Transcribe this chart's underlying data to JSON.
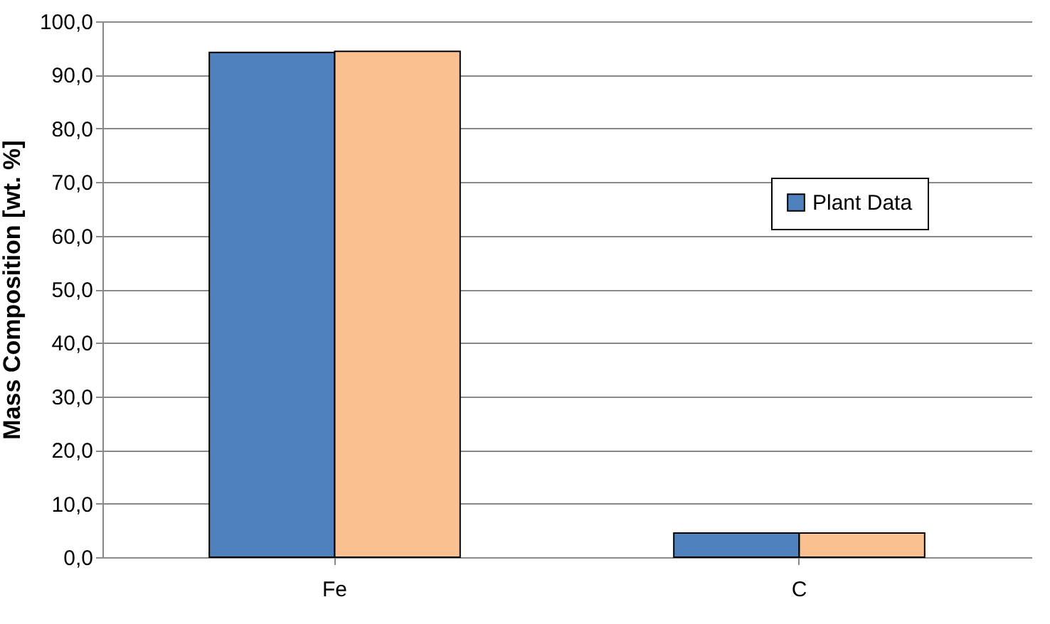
{
  "chart_data": {
    "type": "bar",
    "ylabel": "Mass Composition [wt. %]",
    "categories": [
      "Fe",
      "C"
    ],
    "series": [
      {
        "name": "Plant Data",
        "color": "#4f81bd",
        "values": [
          94.2,
          4.5
        ]
      },
      {
        "color": "#fac090",
        "values": [
          94.4,
          4.5
        ]
      }
    ],
    "ylim": [
      0,
      100
    ],
    "yticks": [
      {
        "value": 0,
        "label": "0,0"
      },
      {
        "value": 10,
        "label": "10,0"
      },
      {
        "value": 20,
        "label": "20,0"
      },
      {
        "value": 30,
        "label": "30,0"
      },
      {
        "value": 40,
        "label": "40,0"
      },
      {
        "value": 50,
        "label": "50,0"
      },
      {
        "value": 60,
        "label": "60,0"
      },
      {
        "value": 70,
        "label": "70,0"
      },
      {
        "value": 80,
        "label": "80,0"
      },
      {
        "value": 90,
        "label": "90,0"
      },
      {
        "value": 100,
        "label": "100,0"
      }
    ],
    "grid": "y",
    "legend": "right"
  }
}
